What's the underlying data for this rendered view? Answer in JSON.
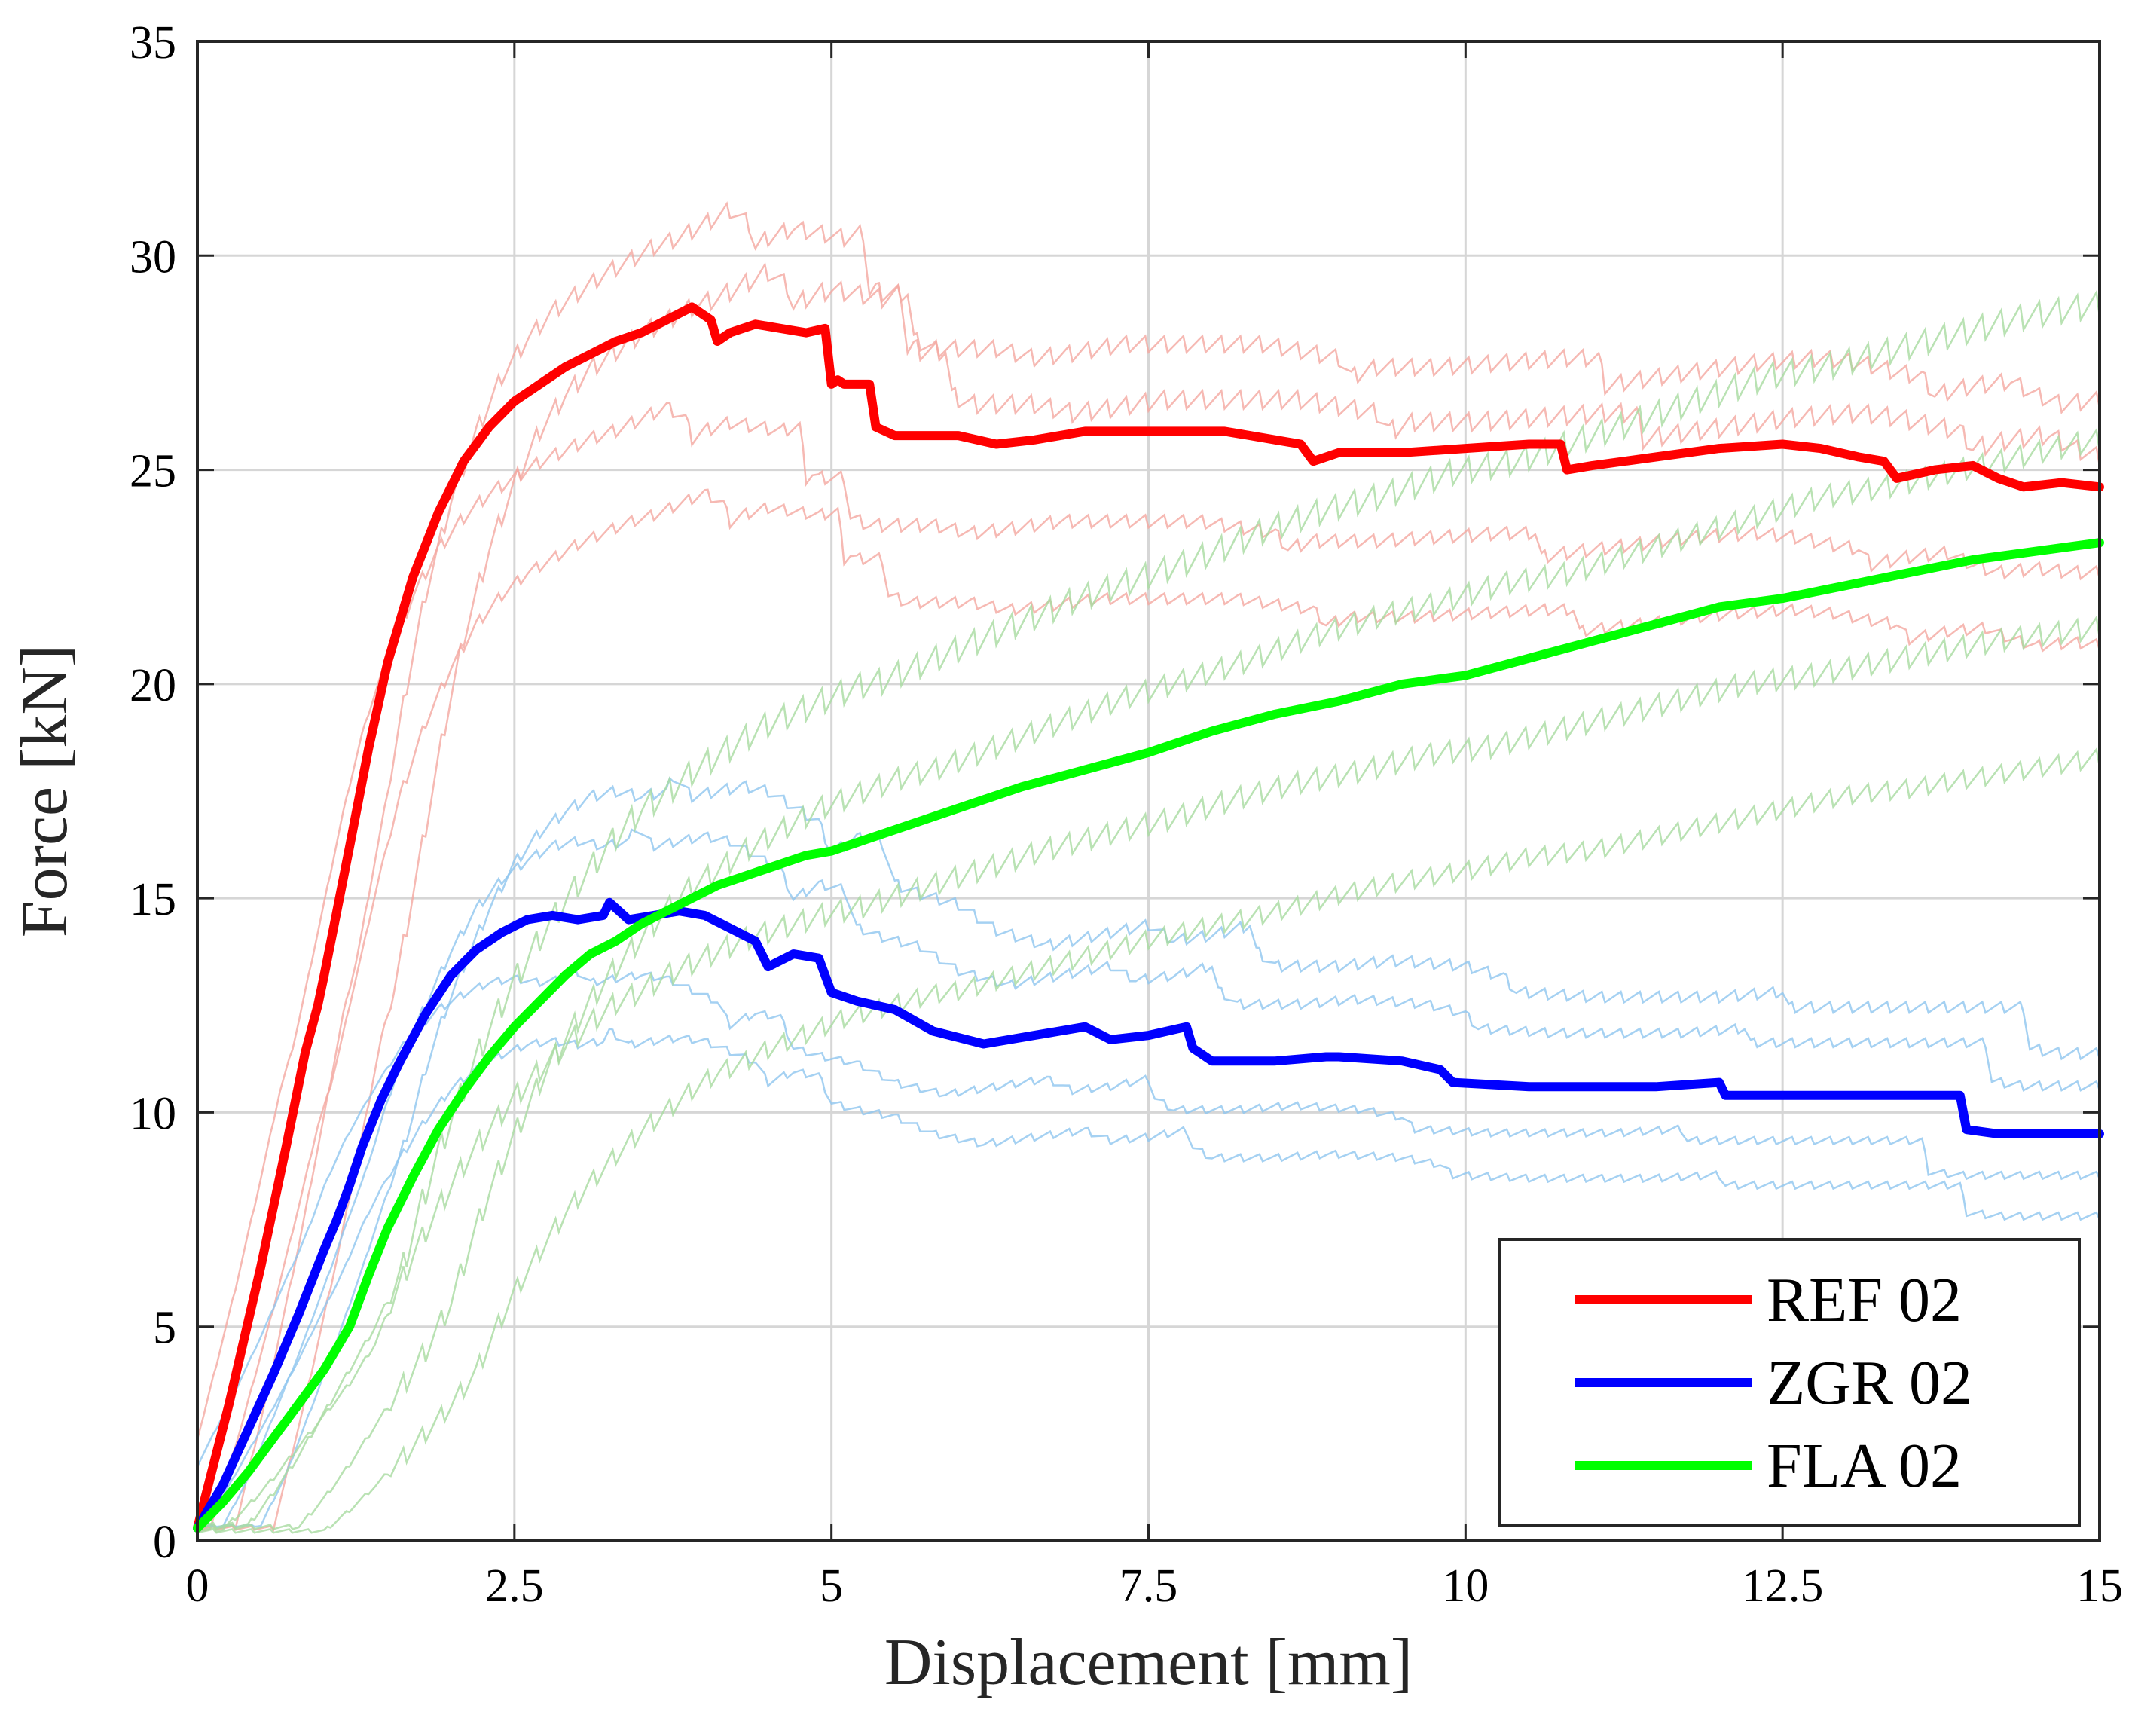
{
  "chart_data": {
    "type": "line",
    "title": "",
    "xlabel": "Displacement [mm]",
    "ylabel": "Force [kN]",
    "xlim": [
      0,
      15
    ],
    "ylim": [
      0,
      35
    ],
    "xticks": [
      0,
      2.5,
      5,
      7.5,
      10,
      12.5,
      15
    ],
    "xtick_labels": [
      "0",
      "2.5",
      "5",
      "7.5",
      "10",
      "12.5",
      "15"
    ],
    "yticks": [
      0,
      5,
      10,
      15,
      20,
      25,
      30,
      35
    ],
    "ytick_labels": [
      "0",
      "5",
      "10",
      "15",
      "20",
      "25",
      "30",
      "35"
    ],
    "grid": true,
    "legend_position": "bottom-right",
    "series": [
      {
        "name": "REF 02",
        "color": "#ff0000",
        "x": [
          0,
          0.25,
          0.5,
          0.7,
          0.85,
          0.95,
          1.0,
          1.1,
          1.2,
          1.35,
          1.5,
          1.7,
          1.9,
          2.1,
          2.3,
          2.5,
          2.7,
          2.9,
          3.1,
          3.3,
          3.5,
          3.7,
          3.9,
          4.05,
          4.1,
          4.2,
          4.4,
          4.6,
          4.8,
          4.95,
          5.0,
          5.05,
          5.1,
          5.3,
          5.35,
          5.5,
          5.7,
          6.0,
          6.3,
          6.6,
          7.0,
          7.4,
          7.8,
          8.1,
          8.5,
          8.7,
          8.8,
          9.0,
          9.5,
          10.0,
          10.5,
          10.75,
          10.8,
          11.0,
          11.5,
          12.0,
          12.5,
          12.8,
          13.1,
          13.3,
          13.4,
          13.7,
          14.0,
          14.2,
          14.4,
          14.7,
          15.0
        ],
        "values": [
          0.3,
          3.2,
          6.4,
          9.2,
          11.4,
          12.5,
          13.2,
          14.7,
          16.2,
          18.5,
          20.5,
          22.5,
          24.0,
          25.2,
          26.0,
          26.6,
          27.0,
          27.4,
          27.7,
          28.0,
          28.2,
          28.5,
          28.8,
          28.5,
          28.0,
          28.2,
          28.4,
          28.3,
          28.2,
          28.3,
          27.0,
          27.1,
          27.0,
          27.0,
          26.0,
          25.8,
          25.8,
          25.8,
          25.6,
          25.7,
          25.9,
          25.9,
          25.9,
          25.9,
          25.7,
          25.6,
          25.2,
          25.4,
          25.4,
          25.5,
          25.6,
          25.6,
          25.0,
          25.1,
          25.3,
          25.5,
          25.6,
          25.5,
          25.3,
          25.2,
          24.8,
          25.0,
          25.1,
          24.8,
          24.6,
          24.7,
          24.6
        ]
      },
      {
        "name": "ZGR 02",
        "color": "#0000ff",
        "x": [
          0,
          0.2,
          0.4,
          0.6,
          0.8,
          1.0,
          1.1,
          1.2,
          1.3,
          1.45,
          1.6,
          1.8,
          2.0,
          2.2,
          2.4,
          2.6,
          2.8,
          3.0,
          3.2,
          3.25,
          3.4,
          3.6,
          3.8,
          4.0,
          4.2,
          4.4,
          4.5,
          4.7,
          4.9,
          5.0,
          5.2,
          5.5,
          5.8,
          6.2,
          6.6,
          7.0,
          7.2,
          7.5,
          7.8,
          7.85,
          8.0,
          8.5,
          8.9,
          9.0,
          9.5,
          9.8,
          9.9,
          10.5,
          11.0,
          11.5,
          12.0,
          12.05,
          12.5,
          13.0,
          13.9,
          13.95,
          14.2,
          14.6,
          15.0
        ],
        "values": [
          0.3,
          1.3,
          2.6,
          3.9,
          5.3,
          6.8,
          7.5,
          8.3,
          9.2,
          10.3,
          11.2,
          12.3,
          13.2,
          13.8,
          14.2,
          14.5,
          14.6,
          14.5,
          14.6,
          14.9,
          14.5,
          14.6,
          14.7,
          14.6,
          14.3,
          14.0,
          13.4,
          13.7,
          13.6,
          12.8,
          12.6,
          12.4,
          11.9,
          11.6,
          11.8,
          12.0,
          11.7,
          11.8,
          12.0,
          11.5,
          11.2,
          11.2,
          11.3,
          11.3,
          11.2,
          11.0,
          10.7,
          10.6,
          10.6,
          10.6,
          10.7,
          10.4,
          10.4,
          10.4,
          10.4,
          9.6,
          9.5,
          9.5,
          9.5
        ]
      },
      {
        "name": "FLA 02",
        "color": "#00ff00",
        "x": [
          0,
          0.2,
          0.4,
          0.6,
          0.8,
          1.0,
          1.2,
          1.35,
          1.5,
          1.7,
          1.9,
          2.1,
          2.3,
          2.5,
          2.7,
          2.9,
          3.1,
          3.3,
          3.5,
          3.7,
          3.9,
          4.1,
          4.3,
          4.5,
          4.8,
          5.0,
          5.5,
          6.0,
          6.5,
          7.0,
          7.5,
          8.0,
          8.5,
          9.0,
          9.5,
          10.0,
          10.5,
          11.0,
          11.5,
          12.0,
          12.5,
          13.0,
          13.5,
          14.0,
          14.5,
          15.0
        ],
        "values": [
          0.3,
          0.9,
          1.6,
          2.4,
          3.2,
          4.0,
          5.0,
          6.2,
          7.3,
          8.5,
          9.6,
          10.5,
          11.3,
          12.0,
          12.6,
          13.2,
          13.7,
          14.0,
          14.4,
          14.7,
          15.0,
          15.3,
          15.5,
          15.7,
          16.0,
          16.1,
          16.6,
          17.1,
          17.6,
          18.0,
          18.4,
          18.9,
          19.3,
          19.6,
          20.0,
          20.2,
          20.6,
          21.0,
          21.4,
          21.8,
          22.0,
          22.3,
          22.6,
          22.9,
          23.1,
          23.3
        ]
      }
    ]
  }
}
